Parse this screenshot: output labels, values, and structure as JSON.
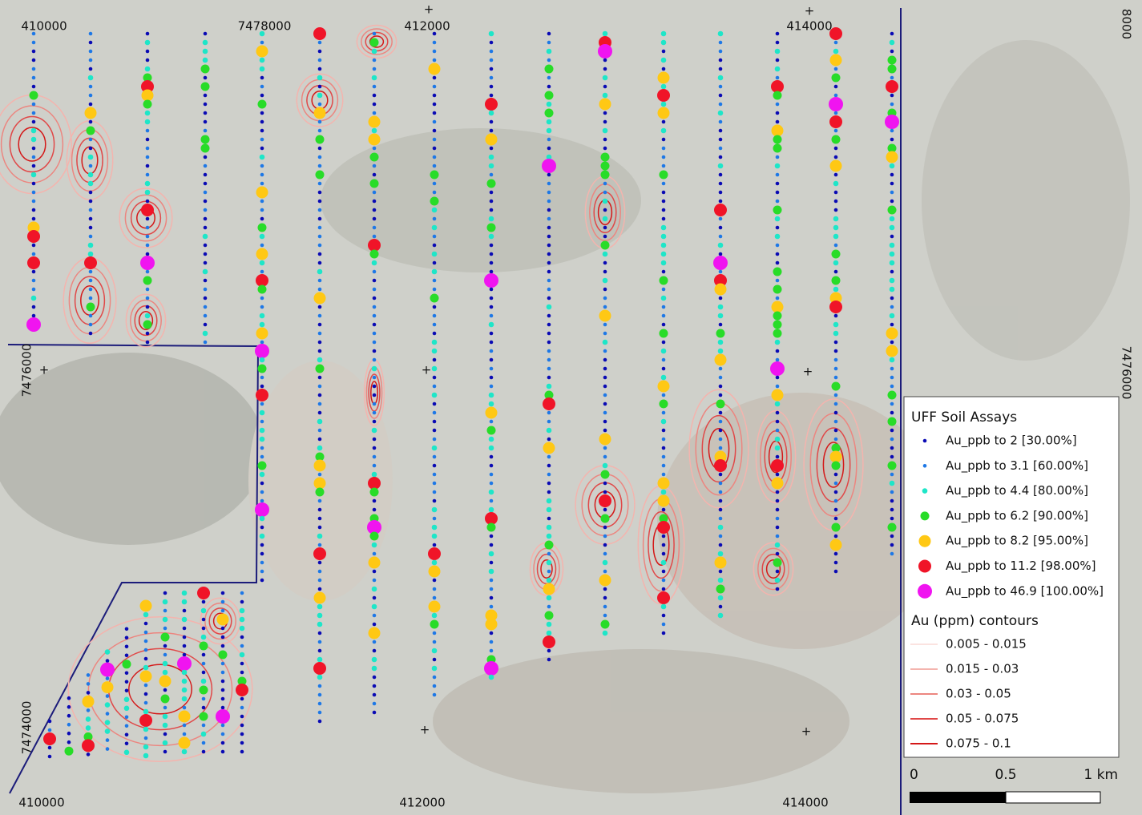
{
  "map": {
    "top_labels": [
      "410000",
      "7478000",
      "412000",
      "414000"
    ],
    "right_labels": [
      "8000",
      "7476000"
    ],
    "left_labels": [
      "7476000",
      "7474000"
    ],
    "bottom_labels": [
      "410000",
      "412000",
      "414000"
    ],
    "legend": {
      "title": "UFF Soil Assays",
      "classes": [
        {
          "label": "Au_ppb  to 2  [30.00%]",
          "color": "#0a0ab4"
        },
        {
          "label": "Au_ppb  to 3.1  [60.00%]",
          "color": "#1e78e6"
        },
        {
          "label": "Au_ppb  to 4.4  [80.00%]",
          "color": "#1ee6c8"
        },
        {
          "label": "Au_ppb  to 6.2  [90.00%]",
          "color": "#28dc28"
        },
        {
          "label": "Au_ppb  to 8.2  [95.00%]",
          "color": "#ffc814"
        },
        {
          "label": "Au_ppb  to 11.2  [98.00%]",
          "color": "#f01428"
        },
        {
          "label": "Au_ppb  to 46.9  [100.00%]",
          "color": "#f014f0"
        }
      ],
      "contour_title": "Au (ppm) contours",
      "contours": [
        {
          "label": "0.005 - 0.015",
          "color": "#fbe3e0"
        },
        {
          "label": "0.015 - 0.03",
          "color": "#f4b4ae"
        },
        {
          "label": "0.03 - 0.05",
          "color": "#ec8680"
        },
        {
          "label": "0.05 - 0.075",
          "color": "#e04848"
        },
        {
          "label": "0.075 - 0.1",
          "color": "#d41818"
        }
      ],
      "scale": [
        "0",
        "0.5",
        "1 km"
      ]
    }
  }
}
